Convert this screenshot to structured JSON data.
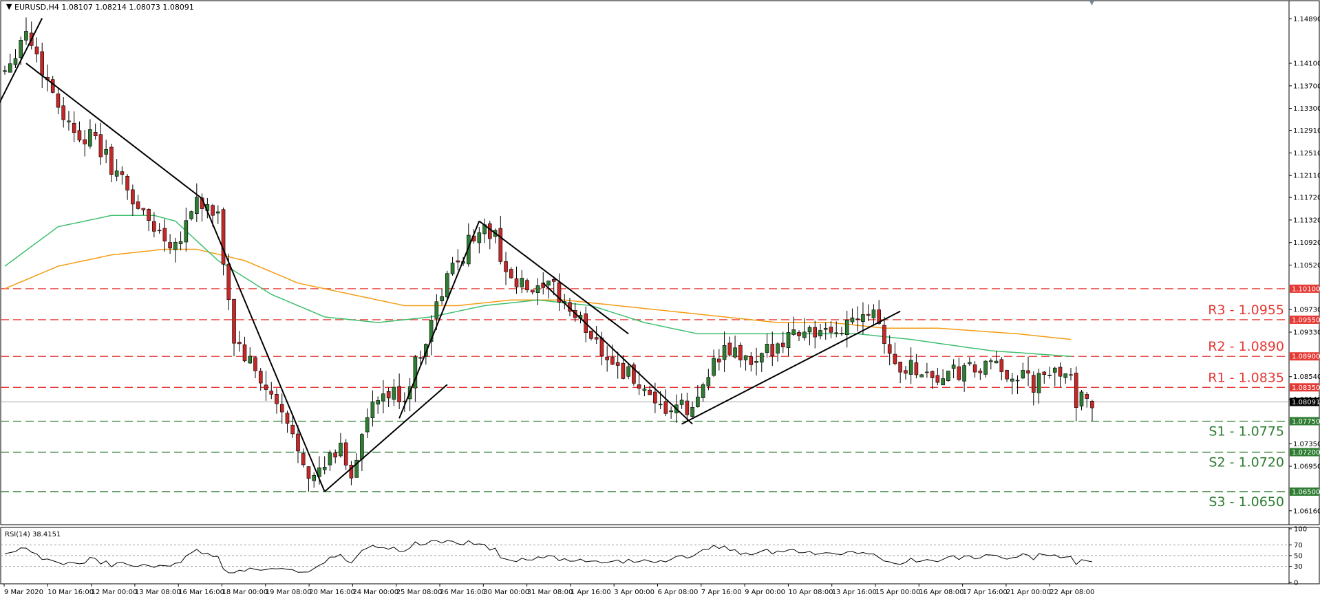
{
  "header": {
    "title": "EURUSD,H4  1.08107 1.08214 1.08073 1.08091"
  },
  "colors": {
    "bull": "#2e7d32",
    "bear": "#c62828",
    "resistance": "#e53935",
    "support": "#2e7d32",
    "ma_fast": "#3dbf6e",
    "ma_slow": "#f39c12",
    "rsi": "#000000",
    "trendline": "#000000"
  },
  "chart_data": [
    {
      "type": "candlestick",
      "title": "EURUSD,H4  1.08107 1.08214 1.08073 1.08091",
      "ylim": [
        1.0595,
        1.1515
      ],
      "y_ticks": [
        "1.14890",
        "1.14100",
        "1.13700",
        "1.13300",
        "1.12910",
        "1.12510",
        "1.12110",
        "1.11720",
        "1.11320",
        "1.10920",
        "1.10520",
        "1.09730",
        "1.09330",
        "1.08540",
        "1.08140",
        "1.07350",
        "1.06950",
        "1.06160"
      ],
      "x_ticks": [
        "9 Mar 2020",
        "10 Mar 16:00",
        "12 Mar 00:00",
        "13 Mar 08:00",
        "16 Mar 16:00",
        "18 Mar 00:00",
        "19 Mar 08:00",
        "20 Mar 16:00",
        "24 Mar 00:00",
        "25 Mar 08:00",
        "26 Mar 16:00",
        "30 Mar 00:00",
        "31 Mar 08:00",
        "1 Apr 16:00",
        "3 Apr 00:00",
        "6 Apr 08:00",
        "7 Apr 16:00",
        "9 Apr 00:00",
        "10 Apr 08:00",
        "13 Apr 16:00",
        "15 Apr 00:00",
        "16 Apr 08:00",
        "17 Apr 16:00",
        "21 Apr 00:00",
        "22 Apr 08:00"
      ],
      "current_price": "1.08091",
      "current_price_value": 1.08091,
      "levels": [
        {
          "name": "R3",
          "label": "R3 - 1.0955",
          "value": 1.0955,
          "tag": "1.09550",
          "kind": "resistance"
        },
        {
          "name": "R2",
          "label": "R2 - 1.0890",
          "value": 1.089,
          "tag": "1.08900",
          "kind": "resistance"
        },
        {
          "name": "R1",
          "label": "R1 - 1.0835",
          "value": 1.0835,
          "tag": "1.08350",
          "kind": "resistance"
        },
        {
          "name": "S1",
          "label": "S1 - 1.0775",
          "value": 1.0775,
          "tag": "1.07750",
          "kind": "support"
        },
        {
          "name": "S2",
          "label": "S2 - 1.0720",
          "value": 1.072,
          "tag": "1.07200",
          "kind": "support"
        },
        {
          "name": "S3",
          "label": "S3 - 1.0650",
          "value": 1.065,
          "tag": "1.06500",
          "kind": "support"
        }
      ],
      "extra_level": {
        "value": 1.101,
        "tag": "1.10100",
        "kind": "resistance"
      },
      "anchors": [
        [
          0,
          1.14
        ],
        [
          4,
          1.147
        ],
        [
          7,
          1.14
        ],
        [
          12,
          1.13
        ],
        [
          17,
          1.127
        ],
        [
          22,
          1.12
        ],
        [
          26,
          1.114
        ],
        [
          29,
          1.111
        ],
        [
          32,
          1.109
        ],
        [
          36,
          1.117
        ],
        [
          40,
          1.113
        ],
        [
          43,
          1.092
        ],
        [
          47,
          1.086
        ],
        [
          51,
          1.08
        ],
        [
          55,
          1.073
        ],
        [
          58,
          1.067
        ],
        [
          63,
          1.073
        ],
        [
          65,
          1.068
        ],
        [
          68,
          1.078
        ],
        [
          71,
          1.082
        ],
        [
          75,
          1.082
        ],
        [
          78,
          1.09
        ],
        [
          83,
          1.103
        ],
        [
          89,
          1.112
        ],
        [
          92,
          1.11
        ],
        [
          95,
          1.102
        ],
        [
          100,
          1.1
        ],
        [
          103,
          1.101
        ],
        [
          107,
          1.096
        ],
        [
          110,
          1.093
        ],
        [
          114,
          1.088
        ],
        [
          118,
          1.085
        ],
        [
          122,
          1.079
        ],
        [
          126,
          1.08
        ],
        [
          129,
          1.079
        ],
        [
          132,
          1.087
        ],
        [
          136,
          1.09
        ],
        [
          141,
          1.087
        ],
        [
          145,
          1.092
        ],
        [
          150,
          1.094
        ],
        [
          155,
          1.092
        ],
        [
          160,
          1.097
        ],
        [
          163,
          1.098
        ],
        [
          167,
          1.087
        ],
        [
          171,
          1.087
        ],
        [
          175,
          1.085
        ],
        [
          179,
          1.086
        ],
        [
          185,
          1.087
        ],
        [
          189,
          1.086
        ],
        [
          193,
          1.084
        ],
        [
          197,
          1.086
        ],
        [
          200,
          1.087
        ],
        [
          201,
          1.081
        ],
        [
          204,
          1.0809
        ]
      ],
      "ma_fast": [
        [
          0,
          1.105
        ],
        [
          10,
          1.112
        ],
        [
          20,
          1.114
        ],
        [
          28,
          1.114
        ],
        [
          32,
          1.113
        ],
        [
          40,
          1.106
        ],
        [
          50,
          1.1
        ],
        [
          60,
          1.096
        ],
        [
          70,
          1.095
        ],
        [
          80,
          1.096
        ],
        [
          90,
          1.098
        ],
        [
          100,
          1.099
        ],
        [
          110,
          1.098
        ],
        [
          120,
          1.095
        ],
        [
          130,
          1.093
        ],
        [
          140,
          1.093
        ],
        [
          150,
          1.093
        ],
        [
          160,
          1.093
        ],
        [
          170,
          1.092
        ],
        [
          185,
          1.09
        ],
        [
          200,
          1.089
        ]
      ],
      "ma_slow": [
        [
          0,
          1.101
        ],
        [
          10,
          1.105
        ],
        [
          20,
          1.107
        ],
        [
          30,
          1.108
        ],
        [
          36,
          1.108
        ],
        [
          45,
          1.106
        ],
        [
          55,
          1.102
        ],
        [
          65,
          1.1
        ],
        [
          75,
          1.098
        ],
        [
          85,
          1.098
        ],
        [
          95,
          1.099
        ],
        [
          105,
          1.099
        ],
        [
          115,
          1.098
        ],
        [
          125,
          1.097
        ],
        [
          135,
          1.096
        ],
        [
          145,
          1.095
        ],
        [
          155,
          1.095
        ],
        [
          165,
          1.094
        ],
        [
          175,
          1.094
        ],
        [
          190,
          1.093
        ],
        [
          200,
          1.092
        ]
      ],
      "trendlines": [
        [
          [
            -1,
            1.134
          ],
          [
            7,
            1.149
          ]
        ],
        [
          [
            4,
            1.141
          ],
          [
            37,
            1.117
          ]
        ],
        [
          [
            37,
            1.117
          ],
          [
            60,
            1.065
          ]
        ],
        [
          [
            60,
            1.065
          ],
          [
            83,
            1.084
          ]
        ],
        [
          [
            74,
            1.078
          ],
          [
            89,
            1.113
          ]
        ],
        [
          [
            89,
            1.113
          ],
          [
            117,
            1.093
          ]
        ],
        [
          [
            101,
            1.102
          ],
          [
            129,
            1.077
          ]
        ],
        [
          [
            127,
            1.077
          ],
          [
            168,
            1.097
          ]
        ]
      ]
    },
    {
      "type": "line",
      "title": "RSI(14) 38.4151",
      "ylim": [
        0,
        100
      ],
      "y_ticks": [
        "100",
        "70",
        "50",
        "30",
        "0"
      ],
      "levels": [
        70,
        50,
        30
      ],
      "last_value": 38.4151
    }
  ]
}
